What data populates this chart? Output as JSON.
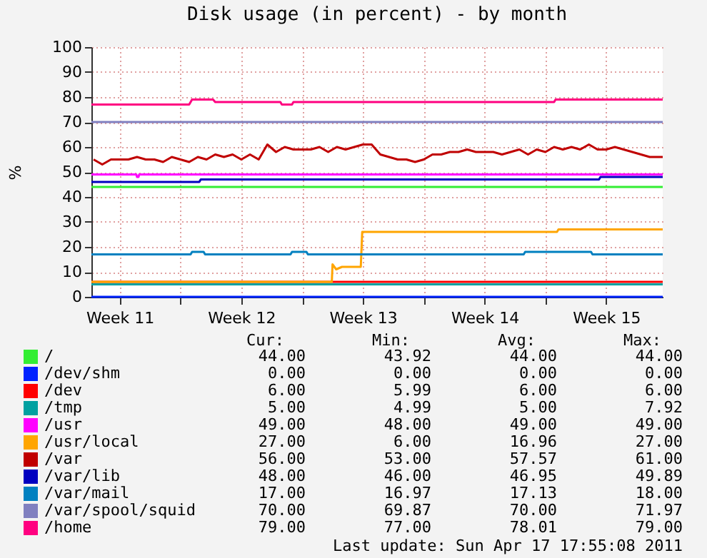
{
  "chart_data": {
    "type": "line",
    "title": "Disk usage (in percent) - by month",
    "ylabel": "%",
    "xlim": [
      "2011-03-15T21:00",
      "2011-04-17T18:00"
    ],
    "xticks": [
      {
        "value": "2011-03-17T12:00",
        "label": "Week 11"
      },
      {
        "value": "2011-03-21T00:00",
        "label": null
      },
      {
        "value": "2011-03-24T12:00",
        "label": "Week 12"
      },
      {
        "value": "2011-03-28T00:00",
        "label": null
      },
      {
        "value": "2011-03-31T12:00",
        "label": "Week 13"
      },
      {
        "value": "2011-04-04T00:00",
        "label": null
      },
      {
        "value": "2011-04-07T12:00",
        "label": "Week 14"
      },
      {
        "value": "2011-04-11T00:00",
        "label": null
      },
      {
        "value": "2011-04-14T12:00",
        "label": "Week 15"
      }
    ],
    "ylim": [
      0,
      100
    ],
    "yticks": [
      0,
      10,
      20,
      30,
      40,
      50,
      60,
      70,
      80,
      90,
      100
    ],
    "grid": true,
    "legend": "bottom",
    "series": [
      {
        "name": "/",
        "color": "#33ee33",
        "x": [
          "2011-03-15T21:00",
          "2011-04-17T18:00"
        ],
        "values": [
          44,
          44
        ]
      },
      {
        "name": "/dev/shm",
        "color": "#0022ff",
        "x": [
          "2011-03-15T21:00",
          "2011-04-17T18:00"
        ],
        "values": [
          0,
          0
        ]
      },
      {
        "name": "/dev",
        "color": "#ff0000",
        "x": [
          "2011-03-15T21:00",
          "2011-04-17T18:00"
        ],
        "values": [
          6,
          6
        ]
      },
      {
        "name": "/tmp",
        "color": "#00a0a0",
        "x": [
          "2011-03-15T21:00",
          "2011-04-17T18:00"
        ],
        "values": [
          5,
          5
        ]
      },
      {
        "name": "/usr",
        "color": "#ff00ff",
        "x": [
          "2011-03-15T21:00",
          "2011-03-18T11:00",
          "2011-03-18T12:00",
          "2011-03-18T14:00",
          "2011-03-18T15:00",
          "2011-04-17T18:00"
        ],
        "values": [
          49,
          49,
          48,
          48,
          49,
          49
        ]
      },
      {
        "name": "/usr/local",
        "color": "#ffa500",
        "x": [
          "2011-03-15T21:00",
          "2011-03-29T17:00",
          "2011-03-29T18:00",
          "2011-03-29T23:00",
          "2011-03-30T07:00",
          "2011-03-31T09:00",
          "2011-03-31T11:00",
          "2011-04-11T16:00",
          "2011-04-11T18:00",
          "2011-04-17T18:00"
        ],
        "values": [
          6,
          6,
          13,
          11,
          12,
          12,
          26,
          26,
          27,
          27
        ]
      },
      {
        "name": "/var",
        "color": "#c00000",
        "x": [
          "2011-03-16T00:00",
          "2011-03-16T12:00",
          "2011-03-17T00:00",
          "2011-03-17T12:00",
          "2011-03-18T00:00",
          "2011-03-18T12:00",
          "2011-03-19T00:00",
          "2011-03-19T12:00",
          "2011-03-20T00:00",
          "2011-03-20T12:00",
          "2011-03-21T00:00",
          "2011-03-21T12:00",
          "2011-03-22T00:00",
          "2011-03-22T12:00",
          "2011-03-23T00:00",
          "2011-03-23T12:00",
          "2011-03-24T00:00",
          "2011-03-24T12:00",
          "2011-03-25T00:00",
          "2011-03-25T12:00",
          "2011-03-26T00:00",
          "2011-03-26T12:00",
          "2011-03-27T00:00",
          "2011-03-27T12:00",
          "2011-03-28T00:00",
          "2011-03-28T12:00",
          "2011-03-29T00:00",
          "2011-03-29T12:00",
          "2011-03-30T00:00",
          "2011-03-30T12:00",
          "2011-03-31T00:00",
          "2011-03-31T12:00",
          "2011-04-01T00:00",
          "2011-04-01T12:00",
          "2011-04-02T00:00",
          "2011-04-02T12:00",
          "2011-04-03T00:00",
          "2011-04-03T12:00",
          "2011-04-04T00:00",
          "2011-04-04T12:00",
          "2011-04-05T00:00",
          "2011-04-05T12:00",
          "2011-04-06T00:00",
          "2011-04-06T12:00",
          "2011-04-07T00:00",
          "2011-04-07T12:00",
          "2011-04-08T00:00",
          "2011-04-08T12:00",
          "2011-04-09T00:00",
          "2011-04-09T12:00",
          "2011-04-10T00:00",
          "2011-04-10T12:00",
          "2011-04-11T00:00",
          "2011-04-11T12:00",
          "2011-04-12T00:00",
          "2011-04-12T12:00",
          "2011-04-13T00:00",
          "2011-04-13T12:00",
          "2011-04-14T00:00",
          "2011-04-14T12:00",
          "2011-04-15T00:00",
          "2011-04-15T12:00",
          "2011-04-16T00:00",
          "2011-04-16T12:00",
          "2011-04-17T00:00",
          "2011-04-17T12:00",
          "2011-04-17T18:00"
        ],
        "values": [
          55,
          53,
          55,
          55,
          55,
          56,
          55,
          55,
          54,
          56,
          55,
          54,
          56,
          55,
          57,
          56,
          57,
          55,
          57,
          55,
          61,
          58,
          60,
          59,
          59,
          59,
          60,
          58,
          60,
          59,
          60,
          61,
          61,
          57,
          56,
          55,
          55,
          54,
          55,
          57,
          57,
          58,
          58,
          59,
          58,
          58,
          58,
          57,
          58,
          59,
          57,
          59,
          58,
          60,
          59,
          60,
          59,
          61,
          59,
          59,
          60,
          59,
          58,
          57,
          56,
          56,
          56
        ]
      },
      {
        "name": "/var/lib",
        "color": "#0000c0",
        "x": [
          "2011-03-15T21:00",
          "2011-03-22T02:00",
          "2011-03-22T04:00",
          "2011-04-14T02:00",
          "2011-04-14T04:00",
          "2011-04-17T18:00"
        ],
        "values": [
          46,
          46,
          47,
          47,
          48,
          48
        ]
      },
      {
        "name": "/var/mail",
        "color": "#0080c0",
        "x": [
          "2011-03-15T21:00",
          "2011-03-21T14:00",
          "2011-03-21T16:00",
          "2011-03-22T08:00",
          "2011-03-22T10:00",
          "2011-03-27T08:00",
          "2011-03-27T10:00",
          "2011-03-28T06:00",
          "2011-03-28T08:00",
          "2011-04-09T18:00",
          "2011-04-09T20:00",
          "2011-04-13T15:00",
          "2011-04-13T17:00",
          "2011-04-17T18:00"
        ],
        "values": [
          17,
          17,
          18,
          18,
          17,
          17,
          18,
          18,
          17,
          17,
          18,
          18,
          17,
          17
        ]
      },
      {
        "name": "/var/spool/squid",
        "color": "#8080c0",
        "x": [
          "2011-03-15T21:00",
          "2011-04-17T18:00"
        ],
        "values": [
          70,
          70
        ]
      },
      {
        "name": "/home",
        "color": "#ff0080",
        "x": [
          "2011-03-15T21:00",
          "2011-03-21T12:00",
          "2011-03-21T16:00",
          "2011-03-22T21:00",
          "2011-03-23T00:00",
          "2011-03-26T18:00",
          "2011-03-26T20:00",
          "2011-03-27T10:00",
          "2011-03-27T12:00",
          "2011-04-11T12:00",
          "2011-04-11T14:00",
          "2011-04-17T18:00"
        ],
        "values": [
          77,
          77,
          79,
          79,
          78,
          78,
          77,
          77,
          78,
          78,
          79,
          79
        ]
      }
    ],
    "annotations": [
      "Cur:",
      "Min:",
      "Avg:",
      "Max:",
      "44.00",
      "43.92",
      "44.00",
      "44.00",
      "0.00",
      "0.00",
      "0.00",
      "0.00",
      "6.00",
      "5.99",
      "6.00",
      "6.00",
      "5.00",
      "4.99",
      "5.00",
      "7.92",
      "49.00",
      "48.00",
      "49.00",
      "49.00",
      "27.00",
      "6.00",
      "16.96",
      "27.00",
      "56.00",
      "53.00",
      "57.57",
      "61.00",
      "48.00",
      "46.00",
      "46.95",
      "49.89",
      "17.00",
      "16.97",
      "17.13",
      "18.00",
      "70.00",
      "69.87",
      "70.00",
      "71.97",
      "79.00",
      "77.00",
      "78.01",
      "79.00",
      "Last update: Sun Apr 17 17:55:08 2011"
    ]
  }
}
